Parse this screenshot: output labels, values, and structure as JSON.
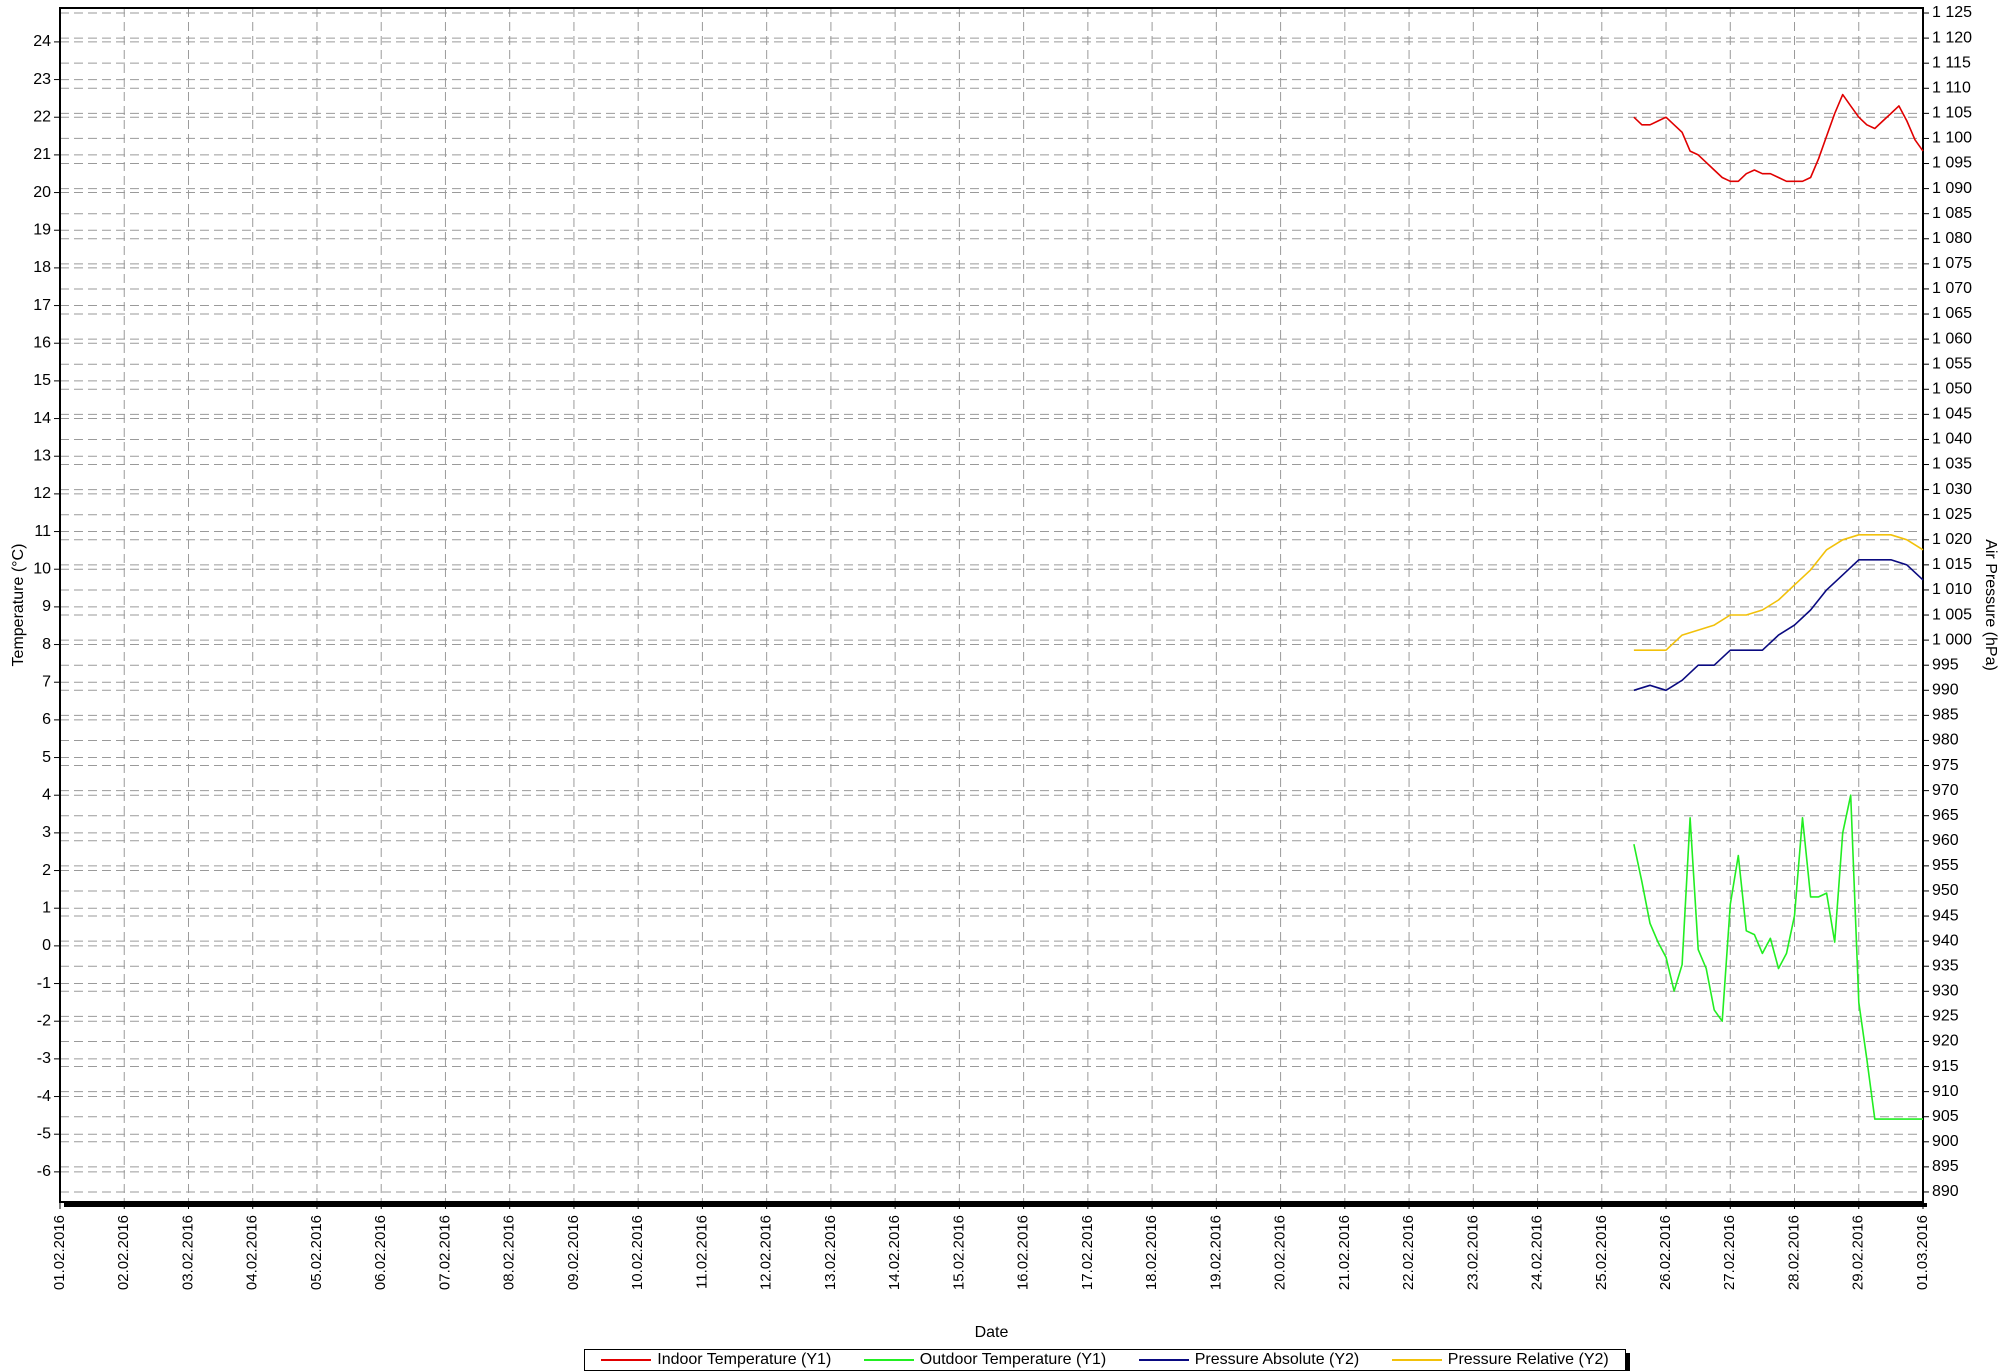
{
  "chart_data": {
    "type": "line",
    "title": "",
    "xlabel": "Date",
    "ylabel": "Temperature (°C)",
    "y2label": "Air Pressure (hPa)",
    "x_ticks": [
      "01.02.2016",
      "02.02.2016",
      "03.02.2016",
      "04.02.2016",
      "05.02.2016",
      "06.02.2016",
      "07.02.2016",
      "08.02.2016",
      "09.02.2016",
      "10.02.2016",
      "11.02.2016",
      "12.02.2016",
      "13.02.2016",
      "14.02.2016",
      "15.02.2016",
      "16.02.2016",
      "17.02.2016",
      "18.02.2016",
      "19.02.2016",
      "20.02.2016",
      "21.02.2016",
      "22.02.2016",
      "23.02.2016",
      "24.02.2016",
      "25.02.2016",
      "26.02.2016",
      "27.02.2016",
      "28.02.2016",
      "29.02.2016",
      "01.03.2016"
    ],
    "xlim": [
      "01.02.2016",
      "01.03.2016"
    ],
    "ylim": [
      -6.8,
      24.9
    ],
    "y_ticks": [
      -6,
      -5,
      -4,
      -3,
      -2,
      -1,
      0,
      1,
      2,
      3,
      4,
      5,
      6,
      7,
      8,
      9,
      10,
      11,
      12,
      13,
      14,
      15,
      16,
      17,
      18,
      19,
      20,
      21,
      22,
      23,
      24
    ],
    "y2lim": [
      888,
      1126
    ],
    "y2_ticks": [
      "1 125",
      "1 120",
      "1 115",
      "1 110",
      "1 105",
      "1 100",
      "1 095",
      "1 090",
      "1 085",
      "1 080",
      "1 075",
      "1 070",
      "1 065",
      "1 060",
      "1 055",
      "1 050",
      "1 045",
      "1 040",
      "1 035",
      "1 030",
      "1 025",
      "1 020",
      "1 015",
      "1 010",
      "1 005",
      "1 000",
      "995",
      "990",
      "985",
      "980",
      "975",
      "970",
      "965",
      "960",
      "955",
      "950",
      "945",
      "940",
      "935",
      "930",
      "925",
      "920",
      "915",
      "910",
      "905",
      "900",
      "895",
      "890"
    ],
    "grid": true,
    "legend_position": "bottom",
    "series": [
      {
        "name": "Indoor Temperature (Y1)",
        "axis": "y1",
        "color": "#e00000",
        "x": [
          "25.02.2016 12:00",
          "25.02.2016 15:00",
          "25.02.2016 18:00",
          "25.02.2016 21:00",
          "26.02.2016 00:00",
          "26.02.2016 03:00",
          "26.02.2016 06:00",
          "26.02.2016 09:00",
          "26.02.2016 12:00",
          "26.02.2016 15:00",
          "26.02.2016 18:00",
          "26.02.2016 21:00",
          "27.02.2016 00:00",
          "27.02.2016 03:00",
          "27.02.2016 06:00",
          "27.02.2016 09:00",
          "27.02.2016 12:00",
          "27.02.2016 15:00",
          "27.02.2016 18:00",
          "27.02.2016 21:00",
          "28.02.2016 00:00",
          "28.02.2016 03:00",
          "28.02.2016 06:00",
          "28.02.2016 09:00",
          "28.02.2016 12:00",
          "28.02.2016 15:00",
          "28.02.2016 18:00",
          "28.02.2016 21:00",
          "29.02.2016 00:00",
          "29.02.2016 03:00",
          "29.02.2016 06:00",
          "29.02.2016 09:00",
          "29.02.2016 12:00",
          "29.02.2016 15:00",
          "29.02.2016 18:00",
          "29.02.2016 21:00",
          "01.03.2016 00:00"
        ],
        "y": [
          22.0,
          21.8,
          21.8,
          21.9,
          22.0,
          21.8,
          21.6,
          21.1,
          21.0,
          20.8,
          20.6,
          20.4,
          20.3,
          20.3,
          20.5,
          20.6,
          20.5,
          20.5,
          20.4,
          20.3,
          20.3,
          20.3,
          20.4,
          20.9,
          21.5,
          22.1,
          22.6,
          22.3,
          22.0,
          21.8,
          21.7,
          21.9,
          22.1,
          22.3,
          21.9,
          21.4,
          21.1
        ]
      },
      {
        "name": "Outdoor Temperature (Y1)",
        "axis": "y1",
        "color": "#22ee22",
        "x": [
          "25.02.2016 12:00",
          "25.02.2016 15:00",
          "25.02.2016 18:00",
          "25.02.2016 21:00",
          "26.02.2016 00:00",
          "26.02.2016 03:00",
          "26.02.2016 06:00",
          "26.02.2016 09:00",
          "26.02.2016 12:00",
          "26.02.2016 15:00",
          "26.02.2016 18:00",
          "26.02.2016 21:00",
          "27.02.2016 00:00",
          "27.02.2016 03:00",
          "27.02.2016 06:00",
          "27.02.2016 09:00",
          "27.02.2016 12:00",
          "27.02.2016 15:00",
          "27.02.2016 18:00",
          "27.02.2016 21:00",
          "28.02.2016 00:00",
          "28.02.2016 03:00",
          "28.02.2016 06:00",
          "28.02.2016 09:00",
          "28.02.2016 12:00",
          "28.02.2016 15:00",
          "28.02.2016 18:00",
          "28.02.2016 21:00",
          "29.02.2016 00:00",
          "29.02.2016 03:00",
          "29.02.2016 06:00",
          "29.02.2016 09:00",
          "29.02.2016 12:00",
          "29.02.2016 15:00",
          "29.02.2016 18:00",
          "29.02.2016 21:00",
          "01.03.2016 00:00"
        ],
        "y": [
          2.7,
          1.7,
          0.6,
          0.1,
          -0.3,
          -1.2,
          -0.5,
          3.4,
          -0.1,
          -0.6,
          -1.7,
          -2.0,
          1.1,
          2.4,
          0.4,
          0.3,
          -0.2,
          0.2,
          -0.6,
          -0.2,
          0.8,
          3.4,
          1.3,
          1.3,
          1.4,
          0.1,
          3.0,
          4.0,
          -1.5,
          -3.0,
          -4.6,
          -4.6,
          -4.6,
          -4.6,
          -4.6,
          -4.6,
          -4.6
        ]
      },
      {
        "name": "Pressure Absolute (Y2)",
        "axis": "y2",
        "color": "#0a0a80",
        "x": [
          "25.02.2016 12:00",
          "25.02.2016 18:00",
          "26.02.2016 00:00",
          "26.02.2016 06:00",
          "26.02.2016 12:00",
          "26.02.2016 18:00",
          "27.02.2016 00:00",
          "27.02.2016 06:00",
          "27.02.2016 12:00",
          "27.02.2016 18:00",
          "28.02.2016 00:00",
          "28.02.2016 06:00",
          "28.02.2016 12:00",
          "28.02.2016 18:00",
          "29.02.2016 00:00",
          "29.02.2016 06:00",
          "29.02.2016 12:00",
          "29.02.2016 18:00",
          "01.03.2016 00:00"
        ],
        "y": [
          990,
          991,
          990,
          992,
          995,
          995,
          998,
          998,
          998,
          1001,
          1003,
          1006,
          1010,
          1013,
          1016,
          1016,
          1016,
          1015,
          1012
        ]
      },
      {
        "name": "Pressure Relative (Y2)",
        "axis": "y2",
        "color": "#f2c10a",
        "x": [
          "25.02.2016 12:00",
          "25.02.2016 18:00",
          "26.02.2016 00:00",
          "26.02.2016 06:00",
          "26.02.2016 12:00",
          "26.02.2016 18:00",
          "27.02.2016 00:00",
          "27.02.2016 06:00",
          "27.02.2016 12:00",
          "27.02.2016 18:00",
          "28.02.2016 00:00",
          "28.02.2016 06:00",
          "28.02.2016 12:00",
          "28.02.2016 18:00",
          "29.02.2016 00:00",
          "29.02.2016 06:00",
          "29.02.2016 12:00",
          "29.02.2016 18:00",
          "01.03.2016 00:00"
        ],
        "y": [
          998,
          998,
          998,
          1001,
          1002,
          1003,
          1005,
          1005,
          1006,
          1008,
          1011,
          1014,
          1018,
          1020,
          1021,
          1021,
          1021,
          1020,
          1018
        ]
      }
    ]
  }
}
